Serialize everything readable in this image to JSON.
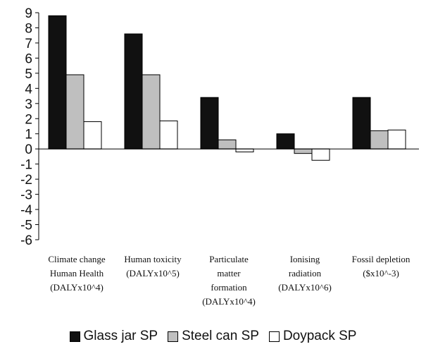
{
  "chart_data": {
    "type": "bar",
    "categories": [
      [
        "Climate change",
        "Human Health",
        "(DALYx10^4)"
      ],
      [
        "Human toxicity",
        "(DALYx10^5)"
      ],
      [
        "Particulate",
        "matter",
        "formation",
        "(DALYx10^4)"
      ],
      [
        "Ionising",
        "radiation",
        "(DALYx10^6)"
      ],
      [
        "Fossil depletion",
        "($x10^-3)"
      ]
    ],
    "series": [
      {
        "name": "Glass jar SP",
        "values": [
          8.8,
          7.6,
          3.4,
          1.0,
          3.4
        ],
        "color": "#111111"
      },
      {
        "name": "Steel can SP",
        "values": [
          4.9,
          4.9,
          0.6,
          -0.3,
          1.2
        ],
        "color": "#bfbfbf"
      },
      {
        "name": "Doypack SP",
        "values": [
          1.8,
          1.85,
          -0.2,
          -0.75,
          1.25
        ],
        "color": "#ffffff"
      }
    ],
    "ylim": [
      -6,
      9
    ],
    "yticks": [
      9,
      8,
      7,
      6,
      5,
      4,
      3,
      2,
      1,
      0,
      -1,
      -2,
      -3,
      -4,
      -5,
      -6
    ],
    "grid": false,
    "legend_position": "bottom"
  }
}
